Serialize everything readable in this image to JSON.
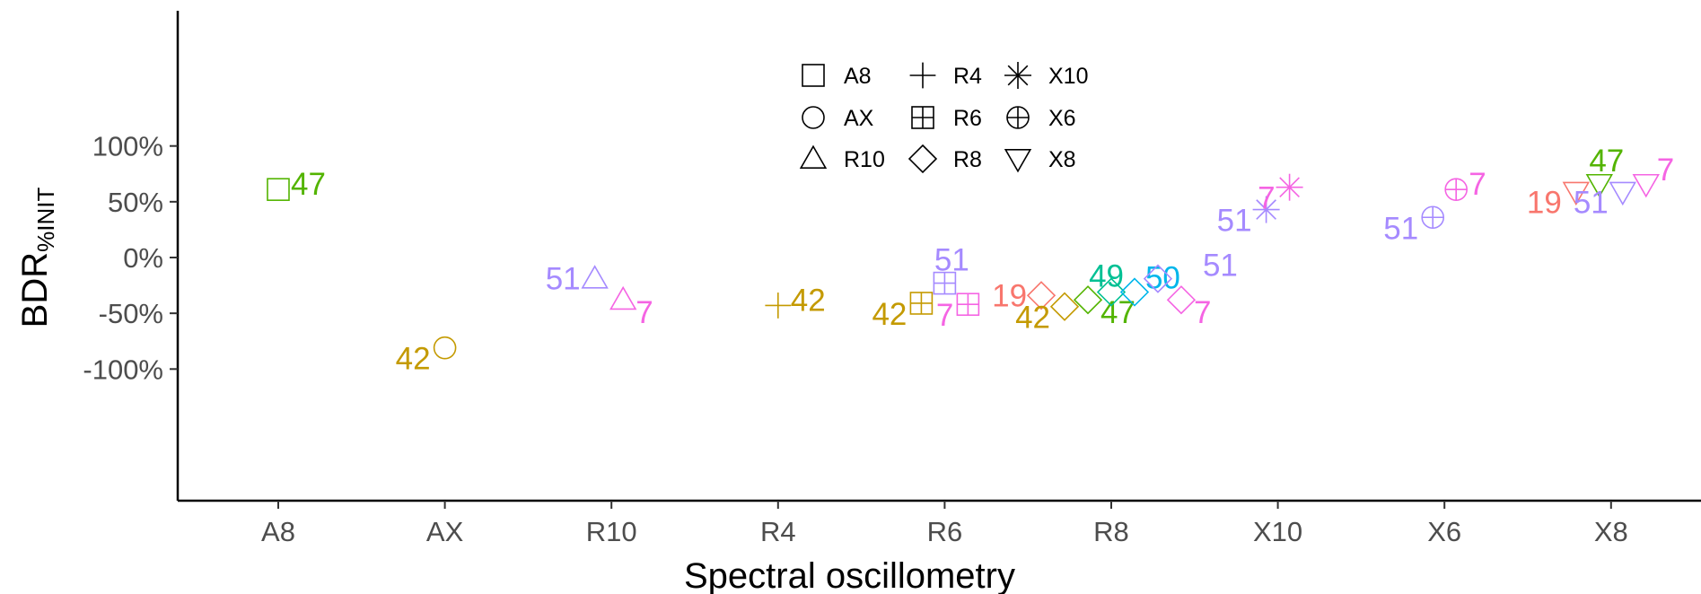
{
  "chart_data": {
    "type": "scatter",
    "xlabel": "Spectral oscillometry",
    "ylabel": {
      "main": "BDR",
      "sub": "%INIT"
    },
    "categories": [
      "A8",
      "AX",
      "R10",
      "R4",
      "R6",
      "R8",
      "X10",
      "X6",
      "X8"
    ],
    "ylim": [
      -110,
      110
    ],
    "y_ticks": [
      {
        "value": 100,
        "label": "100%"
      },
      {
        "value": 50,
        "label": "50%"
      },
      {
        "value": 0,
        "label": "0%"
      },
      {
        "value": -50,
        "label": "-50%"
      },
      {
        "value": -100,
        "label": "-100%"
      }
    ],
    "grid": false,
    "legend": {
      "position": "top-center",
      "columns": [
        [
          {
            "label": "A8",
            "shape": "square"
          },
          {
            "label": "AX",
            "shape": "circle"
          },
          {
            "label": "R10",
            "shape": "triangle-up"
          }
        ],
        [
          {
            "label": "R4",
            "shape": "plus"
          },
          {
            "label": "R6",
            "shape": "square-plus"
          },
          {
            "label": "R8",
            "shape": "diamond"
          }
        ],
        [
          {
            "label": "X10",
            "shape": "asterisk"
          },
          {
            "label": "X6",
            "shape": "circle-plus"
          },
          {
            "label": "X8",
            "shape": "triangle-down"
          }
        ]
      ]
    },
    "subject_colors": {
      "7": "#f564e3",
      "19": "#f8766d",
      "42": "#c49a00",
      "47": "#53b400",
      "49": "#00c094",
      "50": "#00b6eb",
      "51": "#a58aff"
    },
    "points": [
      {
        "category": "A8",
        "subject": "47",
        "y": 61,
        "shape": "square",
        "dx": 0,
        "label_pos": "right"
      },
      {
        "category": "AX",
        "subject": "42",
        "y": -81,
        "shape": "circle",
        "dx": 0,
        "label_pos": "left-below"
      },
      {
        "category": "R10",
        "subject": "51",
        "y": -19,
        "shape": "triangle-up",
        "dx": -0.1,
        "label_pos": "left"
      },
      {
        "category": "R10",
        "subject": "7",
        "y": -38,
        "shape": "triangle-up",
        "dx": 0.07,
        "label_pos": "right-below"
      },
      {
        "category": "R4",
        "subject": "42",
        "y": -43,
        "shape": "plus",
        "dx": 0,
        "label_pos": "right"
      },
      {
        "category": "R6",
        "subject": "51",
        "y": -23,
        "shape": "square-plus",
        "dx": 0,
        "label_pos": "above"
      },
      {
        "category": "R6",
        "subject": "42",
        "y": -41,
        "shape": "square-plus",
        "dx": -0.14,
        "label_pos": "left-below"
      },
      {
        "category": "R6",
        "subject": "7",
        "y": -42,
        "shape": "square-plus",
        "dx": 0.14,
        "label_pos": "left-below"
      },
      {
        "category": "R8",
        "subject": "19",
        "y": -34,
        "shape": "diamond",
        "dx": -0.42,
        "label_pos": "left"
      },
      {
        "category": "R8",
        "subject": "42",
        "y": -44,
        "shape": "diamond",
        "dx": -0.28,
        "label_pos": "left-below"
      },
      {
        "category": "R8",
        "subject": "47",
        "y": -38,
        "shape": "diamond",
        "dx": -0.14,
        "label_pos": "right-below"
      },
      {
        "category": "R8",
        "subject": "49",
        "y": -31,
        "shape": "diamond",
        "dx": 0,
        "label_pos": "left-above"
      },
      {
        "category": "R8",
        "subject": "50",
        "y": -31,
        "shape": "diamond",
        "dx": 0.14,
        "label_pos": "right-above"
      },
      {
        "category": "R8",
        "subject": "51",
        "y": -19,
        "shape": "diamond",
        "dx": 0.28,
        "label_pos": "far-right-above"
      },
      {
        "category": "R8",
        "subject": "7",
        "y": -38,
        "shape": "diamond",
        "dx": 0.42,
        "label_pos": "right-below"
      },
      {
        "category": "X10",
        "subject": "51",
        "y": 43,
        "shape": "asterisk",
        "dx": -0.07,
        "label_pos": "left-below"
      },
      {
        "category": "X10",
        "subject": "7",
        "y": 63,
        "shape": "asterisk",
        "dx": 0.07,
        "label_pos": "left-below"
      },
      {
        "category": "X6",
        "subject": "51",
        "y": 36,
        "shape": "circle-plus",
        "dx": -0.07,
        "label_pos": "left-below"
      },
      {
        "category": "X6",
        "subject": "7",
        "y": 61,
        "shape": "circle-plus",
        "dx": 0.07,
        "label_pos": "right"
      },
      {
        "category": "X8",
        "subject": "19",
        "y": 59,
        "shape": "triangle-down",
        "dx": -0.21,
        "label_pos": "left-below"
      },
      {
        "category": "X8",
        "subject": "47",
        "y": 66,
        "shape": "triangle-down",
        "dx": -0.07,
        "label_pos": "above"
      },
      {
        "category": "X8",
        "subject": "51",
        "y": 59,
        "shape": "triangle-down",
        "dx": 0.07,
        "label_pos": "left-below"
      },
      {
        "category": "X8",
        "subject": "7",
        "y": 66,
        "shape": "triangle-down",
        "dx": 0.21,
        "label_pos": "right-above"
      }
    ]
  }
}
